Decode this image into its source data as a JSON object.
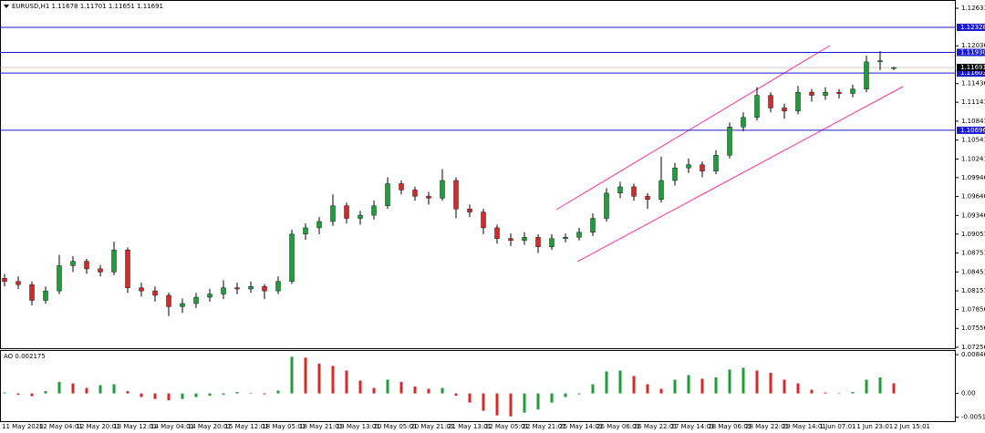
{
  "chart_data": [
    {
      "type": "candlestick",
      "title": "EURUSD,H1  1.11678 1.11701 1.11651 1.11691",
      "up_color": "#1f9d3a",
      "down_color": "#d42a2a",
      "level_color": "#1a1ad0",
      "ylim": [
        1.07227,
        1.12747
      ],
      "yticks": [
        1.12631,
        1.12036,
        1.11436,
        1.11141,
        1.10841,
        1.10541,
        1.10241,
        1.09946,
        1.09646,
        1.09346,
        1.09051,
        1.08751,
        1.08451,
        1.08151,
        1.07856,
        1.07556,
        1.07256
      ],
      "levels": [
        1.12328,
        {
          "value": 1.1193,
          "label": "1.11930"
        },
        1.11603,
        1.10696
      ],
      "current_price": 1.11691,
      "x_labels": [
        "11 May 2020",
        "12 May 04:01",
        "12 May 20:01",
        "13 May 12:01",
        "14 May 04:01",
        "14 May 20:01",
        "15 May 12:01",
        "18 May 05:01",
        "18 May 21:01",
        "19 May 13:01",
        "20 May 05:01",
        "20 May 21:01",
        "21 May 13:01",
        "22 May 05:01",
        "22 May 21:01",
        "25 May 14:01",
        "26 May 06:01",
        "26 May 22:01",
        "27 May 14:01",
        "28 May 06:01",
        "28 May 22:01",
        "29 May 14:01",
        "1 Jun 07:01",
        "1 Jun 23:01",
        "2 Jun 15:01"
      ],
      "candles": [
        [
          1.0835,
          1.0842,
          1.0822,
          1.083
        ],
        [
          1.083,
          1.0838,
          1.0818,
          1.0825
        ],
        [
          1.0825,
          1.083,
          1.0792,
          1.08
        ],
        [
          1.08,
          1.0822,
          1.0795,
          1.0815
        ],
        [
          1.0815,
          1.0872,
          1.081,
          1.0855
        ],
        [
          1.0855,
          1.087,
          1.0845,
          1.0862
        ],
        [
          1.0862,
          1.0866,
          1.0842,
          1.085
        ],
        [
          1.085,
          1.0856,
          1.0838,
          1.0845
        ],
        [
          1.0845,
          1.0893,
          1.084,
          1.088
        ],
        [
          1.088,
          1.0884,
          1.0812,
          1.082
        ],
        [
          1.082,
          1.0828,
          1.0806,
          1.0815
        ],
        [
          1.0815,
          1.0822,
          1.0798,
          1.0808
        ],
        [
          1.0808,
          1.0812,
          1.0775,
          1.079
        ],
        [
          1.079,
          1.0803,
          1.078,
          1.0795
        ],
        [
          1.0795,
          1.0812,
          1.0788,
          1.0805
        ],
        [
          1.0805,
          1.0818,
          1.0798,
          1.081
        ],
        [
          1.081,
          1.0832,
          1.0802,
          1.082
        ],
        [
          1.082,
          1.0828,
          1.081,
          1.0818
        ],
        [
          1.0818,
          1.083,
          1.0812,
          1.0822
        ],
        [
          1.0822,
          1.0826,
          1.0802,
          1.0815
        ],
        [
          1.0815,
          1.0838,
          1.081,
          1.083
        ],
        [
          1.083,
          1.0912,
          1.0826,
          1.0905
        ],
        [
          1.0905,
          1.0922,
          1.0896,
          1.0915
        ],
        [
          1.0915,
          1.0932,
          1.0905,
          1.0925
        ],
        [
          1.0925,
          1.0968,
          1.0918,
          1.095
        ],
        [
          1.095,
          1.0955,
          1.0922,
          1.093
        ],
        [
          1.093,
          1.0942,
          1.092,
          1.0935
        ],
        [
          1.0935,
          1.0958,
          1.0928,
          1.095
        ],
        [
          1.095,
          1.0995,
          1.0945,
          1.0985
        ],
        [
          1.0985,
          1.099,
          1.0968,
          1.0975
        ],
        [
          1.0975,
          1.098,
          1.0958,
          1.0965
        ],
        [
          1.0965,
          1.0972,
          1.0952,
          1.0962
        ],
        [
          1.0962,
          1.1008,
          1.0958,
          1.099
        ],
        [
          1.099,
          1.0995,
          1.093,
          1.0945
        ],
        [
          1.0945,
          1.0952,
          1.0932,
          1.094
        ],
        [
          1.094,
          1.0945,
          1.0905,
          1.0915
        ],
        [
          1.0915,
          1.092,
          1.089,
          1.0898
        ],
        [
          1.0898,
          1.0906,
          1.0886,
          1.0895
        ],
        [
          1.0895,
          1.0908,
          1.0888,
          1.09
        ],
        [
          1.09,
          1.0905,
          1.0875,
          1.0885
        ],
        [
          1.0885,
          1.0905,
          1.088,
          1.0898
        ],
        [
          1.0898,
          1.0906,
          1.0892,
          1.09
        ],
        [
          1.09,
          1.0915,
          1.0895,
          1.0908
        ],
        [
          1.0908,
          1.0938,
          1.0902,
          1.093
        ],
        [
          1.093,
          1.0978,
          1.0925,
          1.097
        ],
        [
          1.097,
          1.0988,
          1.0962,
          1.098
        ],
        [
          1.098,
          1.0985,
          1.0958,
          1.0965
        ],
        [
          1.0965,
          1.097,
          1.0945,
          1.096
        ],
        [
          1.096,
          1.1028,
          1.0955,
          1.099
        ],
        [
          1.099,
          1.1018,
          1.0982,
          1.101
        ],
        [
          1.101,
          1.1025,
          1.1002,
          1.1015
        ],
        [
          1.1015,
          1.102,
          1.0995,
          1.1005
        ],
        [
          1.1005,
          1.1038,
          1.1,
          1.103
        ],
        [
          1.103,
          1.1082,
          1.1025,
          1.1075
        ],
        [
          1.1075,
          1.1098,
          1.1068,
          1.109
        ],
        [
          1.109,
          1.1138,
          1.1085,
          1.1125
        ],
        [
          1.1125,
          1.113,
          1.1098,
          1.1105
        ],
        [
          1.1105,
          1.1112,
          1.1088,
          1.11
        ],
        [
          1.11,
          1.114,
          1.1095,
          1.113
        ],
        [
          1.113,
          1.1135,
          1.1115,
          1.1125
        ],
        [
          1.1125,
          1.1138,
          1.1118,
          1.113
        ],
        [
          1.113,
          1.1135,
          1.112,
          1.1128
        ],
        [
          1.1128,
          1.1142,
          1.1122,
          1.1135
        ],
        [
          1.1135,
          1.1188,
          1.113,
          1.1178
        ],
        [
          1.1178,
          1.1195,
          1.1165,
          1.118
        ],
        [
          1.11678,
          1.11701,
          1.11651,
          1.11691
        ]
      ]
    },
    {
      "type": "bar",
      "title": "AO 0.002175",
      "up_color": "#1f9d3a",
      "down_color": "#d42a2a",
      "ylim": [
        -0.00605,
        0.00927
      ],
      "yticks": [
        0.008465,
        {
          "value": 0,
          "label": "0.00"
        },
        -0.005198
      ],
      "values": [
        0.0002,
        -0.0003,
        -0.0006,
        0.0005,
        0.0025,
        0.0022,
        0.0012,
        0.0018,
        0.002,
        0.0005,
        -0.0008,
        -0.0012,
        -0.0015,
        -0.0012,
        -0.0008,
        -0.0005,
        -0.0003,
        0.0003,
        0.0001,
        -0.0002,
        0.0006,
        0.008,
        0.0078,
        0.0065,
        0.006,
        0.005,
        0.0028,
        0.0012,
        0.003,
        0.0025,
        0.0015,
        0.001,
        0.0012,
        -0.0005,
        -0.002,
        -0.0038,
        -0.0048,
        -0.005,
        -0.0042,
        -0.0035,
        -0.002,
        -0.0008,
        -0.0002,
        0.002,
        0.0048,
        0.005,
        0.0038,
        0.002,
        0.001,
        0.003,
        0.004,
        0.0032,
        0.0035,
        0.0052,
        0.0056,
        0.005,
        0.0045,
        0.003,
        0.0022,
        0.0008,
        0.0002,
        -0.0001,
        0.0003,
        0.003,
        0.0035,
        0.0022
      ]
    }
  ]
}
